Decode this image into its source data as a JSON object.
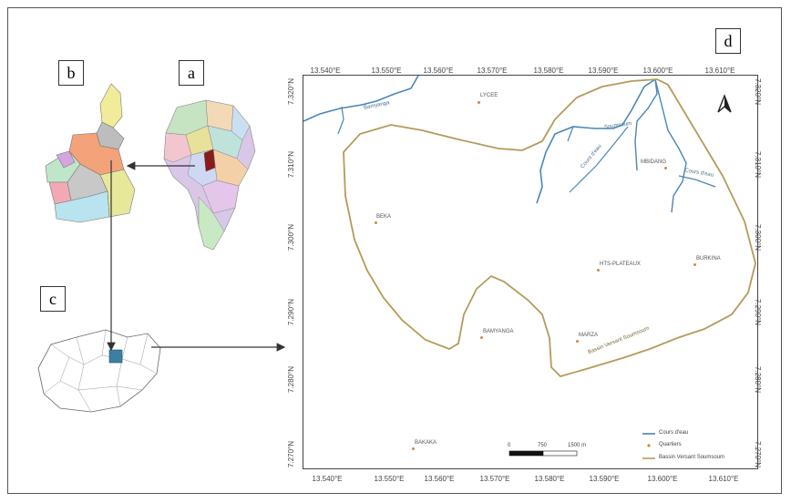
{
  "panels": {
    "a": "a",
    "b": "b",
    "c": "c",
    "d": "d"
  },
  "map": {
    "x_ticks": [
      "13.540°E",
      "13.550°E",
      "13.560°E",
      "13.570°E",
      "13.580°E",
      "13.590°E",
      "13.600°E",
      "13.610°E"
    ],
    "y_ticks": [
      "7.320°N",
      "7.310°N",
      "7.300°N",
      "7.290°N",
      "7.280°N",
      "7.270°N"
    ],
    "places": [
      {
        "name": "LYCEE"
      },
      {
        "name": "BEKA"
      },
      {
        "name": "MBIDANG"
      },
      {
        "name": "HTS-PLATEAUX"
      },
      {
        "name": "BURKINA"
      },
      {
        "name": "BAMYANGA"
      },
      {
        "name": "MARZA"
      },
      {
        "name": "BAKAKA"
      }
    ],
    "river_labels": {
      "r1": "Bamyanga",
      "r2": "Soumsoum",
      "r3": "Cours d'eau",
      "r4": "Cours d'eau"
    },
    "basin_label": "Bassin Versant Soumsoum",
    "legend": [
      {
        "label": "Cours d'eau",
        "color": "#4a86b8"
      },
      {
        "label": "Quartiers",
        "color": "#d2883a"
      },
      {
        "label": "Bassin Versant Soumsoum",
        "color": "#b59a5a"
      }
    ],
    "scale": {
      "labels": [
        "0",
        "750",
        "1500 m"
      ]
    }
  }
}
